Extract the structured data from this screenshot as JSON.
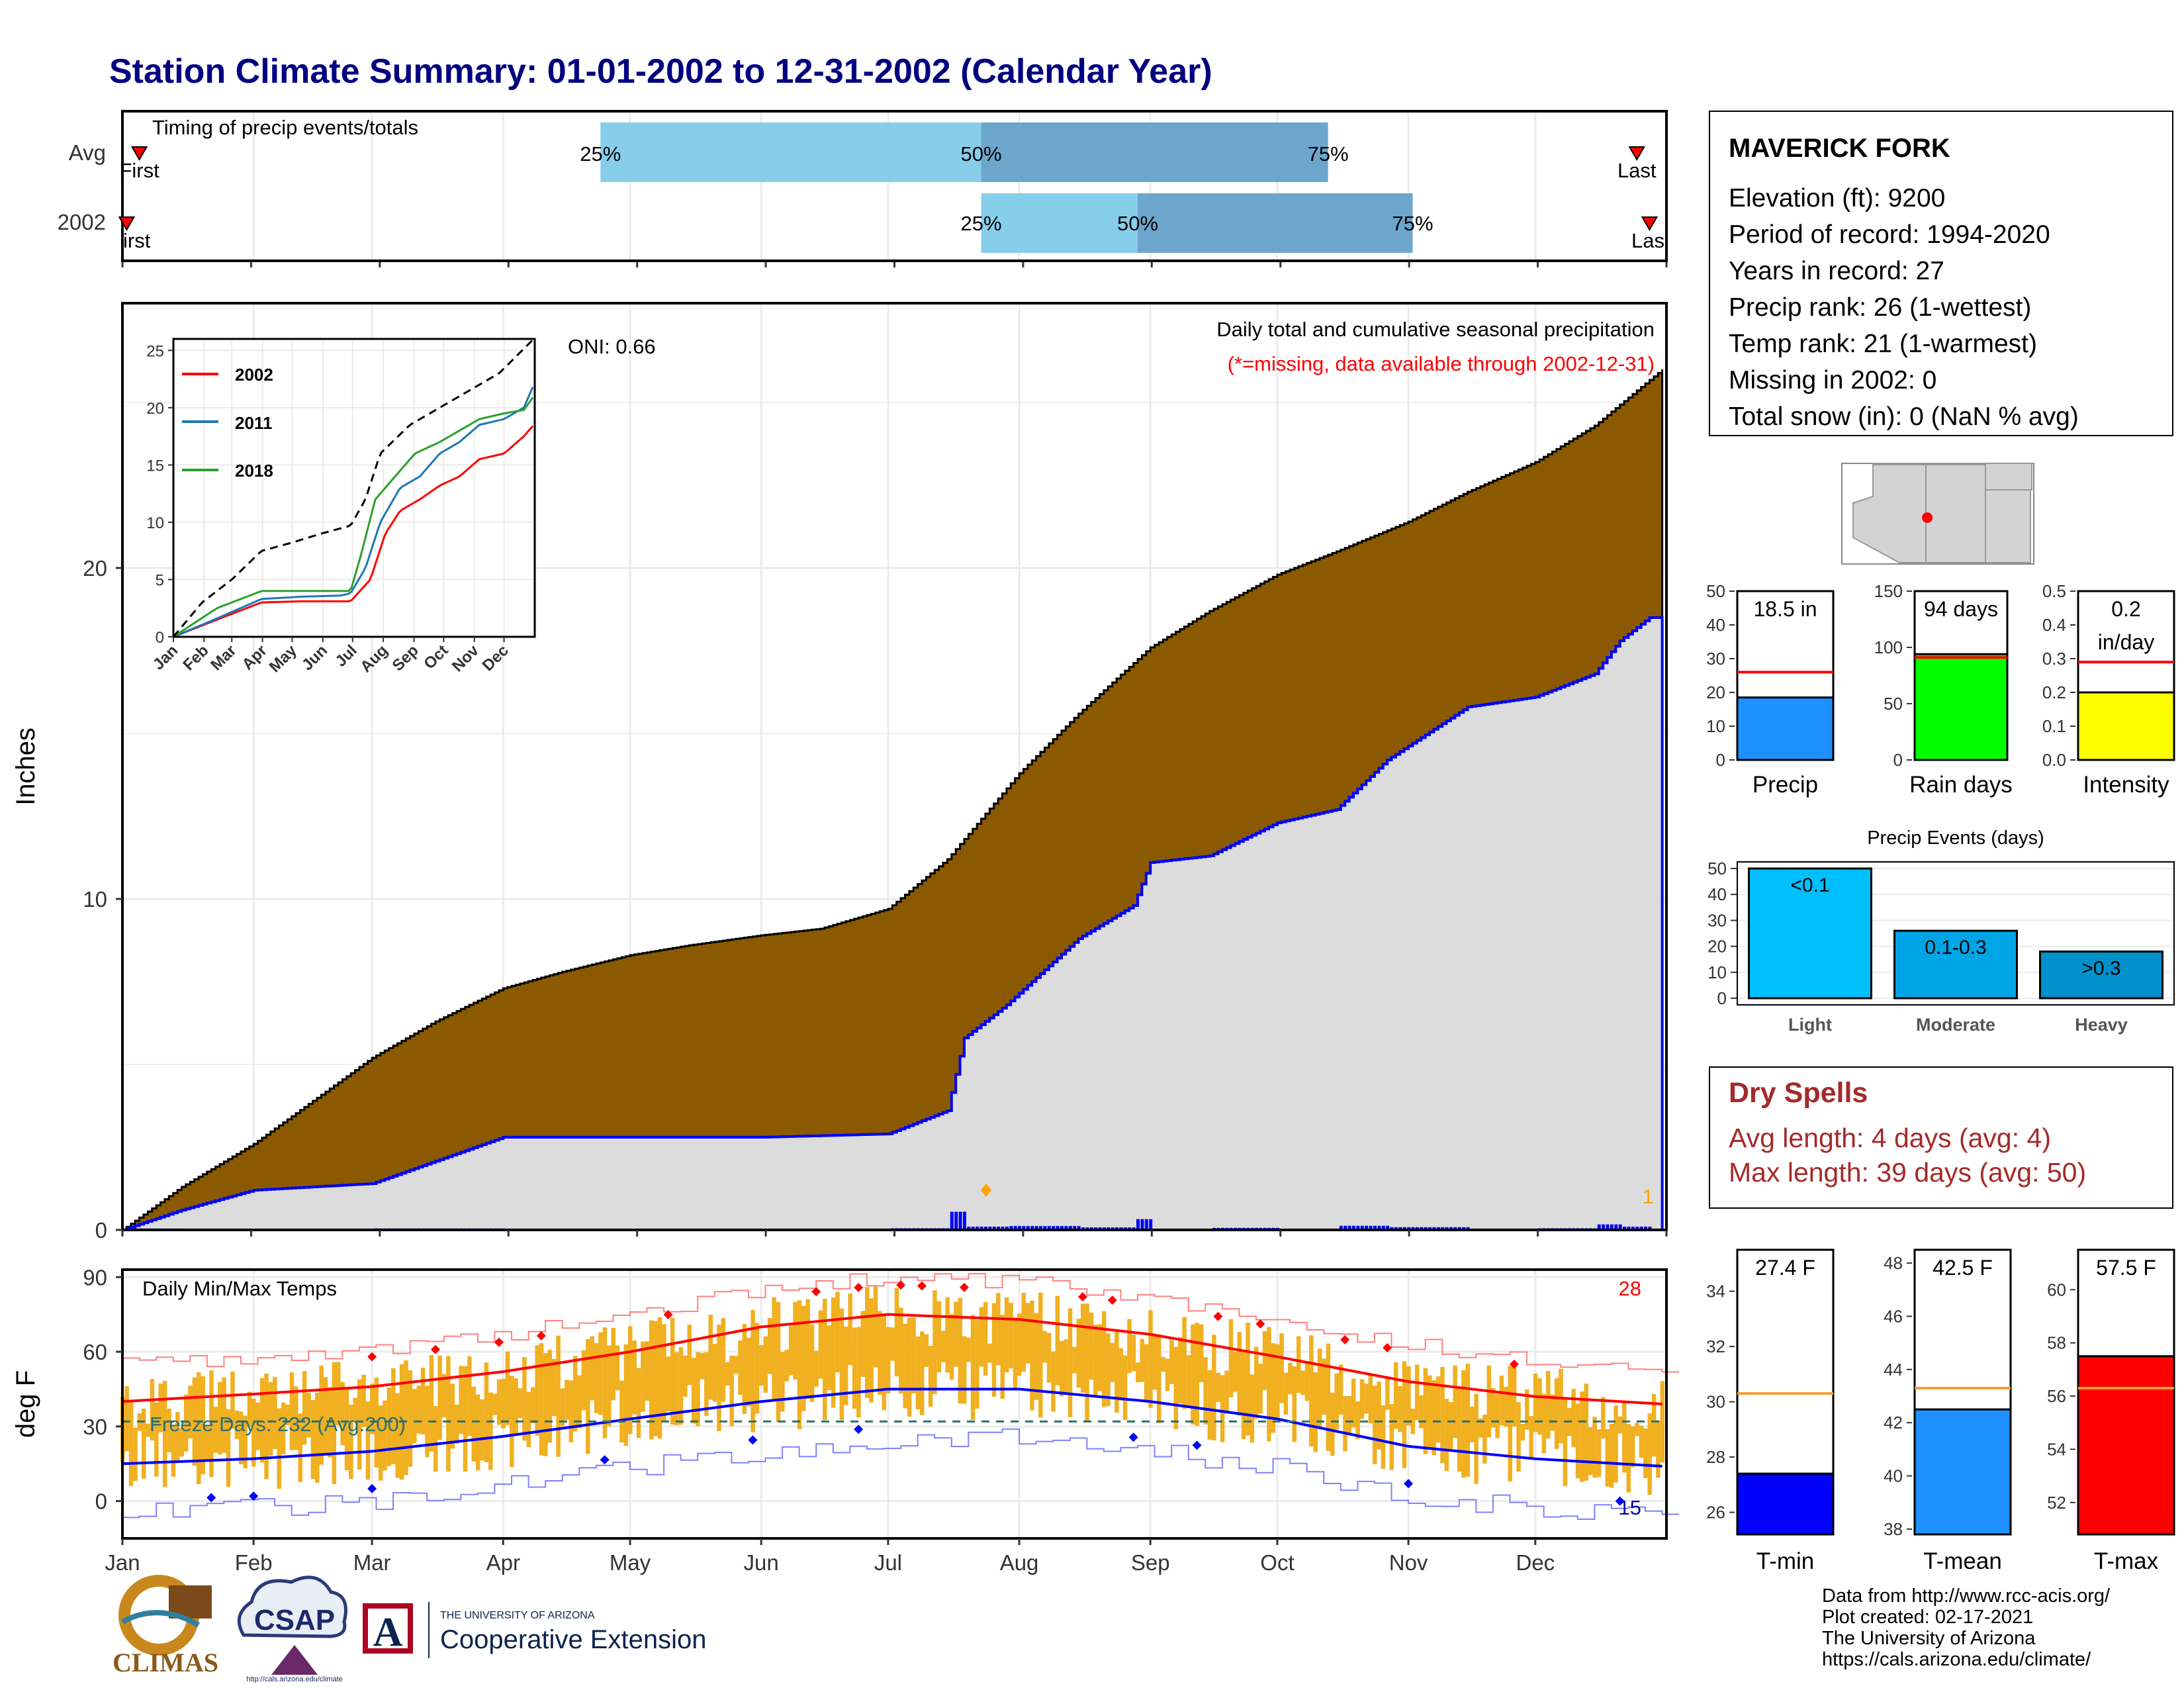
{
  "title": "Station Climate Summary: 01-01-2002 to 12-31-2002 (Calendar Year)",
  "months": [
    "Jan",
    "Feb",
    "Mar",
    "Apr",
    "May",
    "Jun",
    "Jul",
    "Aug",
    "Sep",
    "Oct",
    "Nov",
    "Dec"
  ],
  "timing": {
    "title": "Timing of precip events/totals",
    "rows": [
      "Avg",
      "2002"
    ],
    "first_label": "First",
    "first_label_2002": "irst",
    "last_label": "Last",
    "last_label_2002": "Las",
    "p25": "25%",
    "p50": "50%",
    "p75": "75%"
  },
  "station": {
    "name": "MAVERICK FORK",
    "lines": [
      "Elevation (ft): 9200",
      "Period of record: 1994-2020",
      "Years in record: 27",
      "Precip rank: 26 (1-wettest)",
      "Temp rank: 21 (1-warmest)",
      "Missing in 2002: 0",
      "Total snow (in): 0 (NaN % avg)"
    ]
  },
  "main": {
    "ylabel": "Inches",
    "title1": "Daily total and cumulative seasonal precipitation",
    "title2": "(*=missing, data available through 2002-12-31)",
    "oni": "ONI: 0.66",
    "count_label": "1",
    "y_ticks": [
      "0",
      "10",
      "20"
    ]
  },
  "inset": {
    "y_ticks": [
      "0",
      "5",
      "10",
      "15",
      "20",
      "25"
    ],
    "x_ticks": [
      "Jan",
      "Feb",
      "Mar",
      "Apr",
      "May",
      "Jun",
      "Jul",
      "Aug",
      "Sep",
      "Oct",
      "Nov",
      "Dec"
    ],
    "legend": [
      "2002",
      "2011",
      "2018"
    ]
  },
  "temps": {
    "title": "Daily Min/Max Temps",
    "ylabel": "deg F",
    "freeze": "Freeze Days: 232 (Avg:200)",
    "high_count": "28",
    "low_count": "15",
    "y_ticks": [
      "0",
      "30",
      "60",
      "90"
    ]
  },
  "mini_bars": [
    {
      "label": "Precip",
      "value_text": "18.5 in",
      "ticks": [
        "0",
        "10",
        "20",
        "30",
        "40",
        "50"
      ],
      "color": "#1E90FF"
    },
    {
      "label": "Rain days",
      "value_text": "94 days",
      "ticks": [
        "0",
        "50",
        "100",
        "150"
      ],
      "color": "#00FF00"
    },
    {
      "label": "Intensity",
      "value_text1": "0.2",
      "value_text2": "in/day",
      "ticks": [
        "0.0",
        "0.1",
        "0.2",
        "0.3",
        "0.4",
        "0.5"
      ],
      "color": "#FFFF00"
    }
  ],
  "events": {
    "title": "Precip Events (days)",
    "ticks": [
      "0",
      "10",
      "20",
      "30",
      "40",
      "50"
    ],
    "bars": [
      {
        "category": "Light",
        "label": "<0.1",
        "color": "#00BFFF"
      },
      {
        "category": "Moderate",
        "label": "0.1-0.3",
        "color": "#00A5E5"
      },
      {
        "category": "Heavy",
        "label": ">0.3",
        "color": "#0090CC"
      }
    ]
  },
  "dry": {
    "title": "Dry Spells",
    "line1": "Avg length: 4 days (avg: 4)",
    "line2": "Max length: 39 days (avg: 50)"
  },
  "temp_bars": [
    {
      "label": "T-min",
      "value_text": "27.4 F",
      "ticks": [
        "26",
        "28",
        "30",
        "32",
        "34"
      ],
      "color": "#0000FF"
    },
    {
      "label": "T-mean",
      "value_text": "42.5 F",
      "ticks": [
        "38",
        "40",
        "42",
        "44",
        "46",
        "48"
      ],
      "color": "#1E90FF"
    },
    {
      "label": "T-max",
      "value_text": "57.5 F",
      "ticks": [
        "52",
        "54",
        "56",
        "58",
        "60"
      ],
      "color": "#FF0000"
    }
  ],
  "footer": [
    "Data from http://www.rcc-acis.org/",
    "Plot created: 02-17-2021",
    "The University of Arizona",
    "https://cals.arizona.edu/climate/"
  ],
  "logos": {
    "climas": "CLIMAS",
    "csap": "CSAP",
    "csap_url": "http://cals.arizona.edu/climate",
    "ua_small": "THE UNIVERSITY OF ARIZONA",
    "ua_big": "Cooperative Extension",
    "ua_letter": "A"
  },
  "colors": {
    "title": "#000080",
    "brown": "#8B5A00",
    "gray": "#DCDCDC",
    "blue": "#0000FF",
    "orange": "#F0B020",
    "red": "#FF0000",
    "dry": "#A52A2A",
    "q_light": "#87CEEB",
    "q_dark": "#6CA6CD"
  },
  "chart_data": {
    "type": "composite",
    "timing": {
      "avg": {
        "first_doy": 5,
        "p25_doy": 114,
        "p50_doy": 204,
        "p75_doy": 286,
        "last_doy": 359
      },
      "y2002": {
        "first_doy": 2,
        "p25_doy": 204,
        "p50_doy": 241,
        "p75_doy": 306,
        "last_doy": 362
      }
    },
    "cumulative_avg": {
      "doy": [
        1,
        15,
        32,
        46,
        60,
        75,
        91,
        105,
        121,
        135,
        152,
        166,
        182,
        196,
        213,
        227,
        244,
        258,
        274,
        288,
        305,
        319,
        335,
        349,
        365
      ],
      "inches": [
        0,
        1.3,
        2.6,
        3.9,
        5.2,
        6.3,
        7.3,
        7.8,
        8.3,
        8.6,
        8.9,
        9.1,
        9.7,
        11.2,
        13.8,
        15.6,
        17.6,
        18.7,
        19.8,
        20.5,
        21.4,
        22.3,
        23.2,
        24.3,
        26.0
      ]
    },
    "cumulative_2002": {
      "doy": [
        1,
        15,
        32,
        60,
        91,
        121,
        152,
        182,
        196,
        200,
        204,
        210,
        227,
        240,
        244,
        258,
        274,
        288,
        300,
        319,
        335,
        349,
        355,
        362,
        365
      ],
      "inches": [
        0,
        0.6,
        1.2,
        1.4,
        2.8,
        2.8,
        2.8,
        2.9,
        3.6,
        5.8,
        6.2,
        6.8,
        8.8,
        9.8,
        11.1,
        11.3,
        12.3,
        12.7,
        14.2,
        15.8,
        16.1,
        16.8,
        17.8,
        18.5,
        18.5
      ]
    },
    "inset_series": [
      {
        "name": "2002",
        "doy": [
          1,
          45,
          90,
          130,
          170,
          180,
          200,
          215,
          230,
          250,
          270,
          290,
          310,
          335,
          355,
          365
        ],
        "inches": [
          0,
          1.5,
          3,
          3.1,
          3.1,
          3.1,
          5,
          9,
          11,
          12,
          13.2,
          14,
          15.5,
          16,
          17.5,
          18.5
        ]
      },
      {
        "name": "2011",
        "doy": [
          1,
          45,
          90,
          130,
          170,
          180,
          195,
          210,
          230,
          250,
          270,
          290,
          310,
          335,
          355,
          365
        ],
        "inches": [
          0,
          1.6,
          3.3,
          3.5,
          3.6,
          3.8,
          6,
          10,
          13,
          14,
          16,
          17,
          18.5,
          19,
          20,
          22
        ]
      },
      {
        "name": "2018",
        "doy": [
          1,
          45,
          90,
          130,
          170,
          180,
          190,
          205,
          225,
          245,
          270,
          290,
          310,
          335,
          355,
          365
        ],
        "inches": [
          0,
          2.5,
          4,
          4,
          4,
          4,
          7,
          12,
          14,
          16,
          17,
          18,
          19,
          19.5,
          19.8,
          21
        ]
      },
      {
        "name": "avg",
        "doy": [
          1,
          30,
          60,
          90,
          120,
          150,
          180,
          195,
          210,
          240,
          270,
          300,
          330,
          365
        ],
        "inches": [
          0,
          3,
          5,
          7.5,
          8.2,
          9,
          9.7,
          12,
          16,
          18.5,
          20,
          21.5,
          23,
          26
        ]
      }
    ],
    "inset_ylim": [
      0,
      26
    ],
    "main_ylim": [
      0,
      28
    ],
    "temp_ylim": [
      -15,
      93
    ],
    "temps_avg": {
      "doy": [
        1,
        32,
        60,
        91,
        121,
        152,
        182,
        213,
        244,
        274,
        305,
        335,
        365
      ],
      "avg_max": [
        40,
        43,
        46,
        52,
        60,
        70,
        75,
        73,
        67,
        58,
        48,
        42,
        39
      ],
      "avg_min": [
        15,
        17,
        20,
        26,
        33,
        40,
        45,
        45,
        40,
        33,
        22,
        17,
        14
      ]
    },
    "mini": {
      "precip": {
        "value": 18.5,
        "avg": 26,
        "ylim": [
          0,
          50
        ]
      },
      "rain_days": {
        "value": 94,
        "avg": 91,
        "ylim": [
          0,
          150
        ]
      },
      "intensity": {
        "value": 0.2,
        "avg": 0.29,
        "ylim": [
          0,
          0.5
        ]
      }
    },
    "events": {
      "categories": [
        "Light",
        "Moderate",
        "Heavy"
      ],
      "values": [
        50,
        26,
        18
      ],
      "ylim": [
        0,
        50
      ]
    },
    "temp_summary": {
      "tmin": {
        "value": 27.4,
        "avg": 30.3,
        "ylim": [
          25.2,
          35.5
        ]
      },
      "tmean": {
        "value": 42.5,
        "avg": 43.3,
        "ylim": [
          37.8,
          48.5
        ]
      },
      "tmax": {
        "value": 57.5,
        "avg": 56.3,
        "ylim": [
          50.8,
          61.5
        ]
      }
    },
    "freeze_line": 32
  }
}
